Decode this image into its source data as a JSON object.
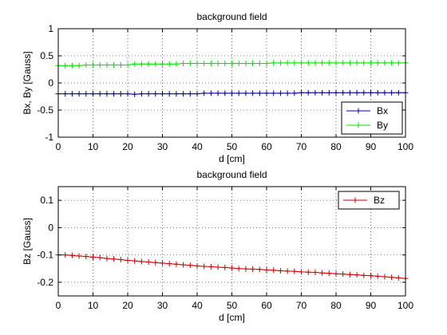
{
  "chart_data": [
    {
      "type": "line",
      "title": "background field",
      "xlabel": "d [cm]",
      "ylabel": "Bx, By [Gauss]",
      "xlim": [
        0,
        100
      ],
      "ylim": [
        -1,
        1
      ],
      "xticks": [
        0,
        10,
        20,
        30,
        40,
        50,
        60,
        70,
        80,
        90,
        100
      ],
      "yticks": [
        -1,
        -0.5,
        0,
        0.5,
        1
      ],
      "ytick_labels": [
        "-1",
        "-0.5",
        "0",
        "0.5",
        "1"
      ],
      "grid": true,
      "legend": "bottom-right",
      "marker": "plus",
      "series": [
        {
          "name": "Bx",
          "color": "#00008f",
          "x": [
            0,
            2,
            4,
            6,
            8,
            10,
            12,
            14,
            16,
            18,
            20,
            22,
            24,
            26,
            28,
            30,
            32,
            34,
            36,
            38,
            40,
            42,
            44,
            46,
            48,
            50,
            52,
            54,
            56,
            58,
            60,
            62,
            64,
            66,
            68,
            70,
            72,
            74,
            76,
            78,
            80,
            82,
            84,
            86,
            88,
            90,
            92,
            94,
            96,
            98,
            100
          ],
          "y": [
            -0.2,
            -0.2,
            -0.2,
            -0.2,
            -0.2,
            -0.2,
            -0.2,
            -0.2,
            -0.2,
            -0.2,
            -0.2,
            -0.21,
            -0.2,
            -0.2,
            -0.2,
            -0.2,
            -0.2,
            -0.2,
            -0.2,
            -0.2,
            -0.2,
            -0.19,
            -0.19,
            -0.19,
            -0.19,
            -0.19,
            -0.19,
            -0.19,
            -0.19,
            -0.19,
            -0.19,
            -0.19,
            -0.19,
            -0.19,
            -0.19,
            -0.18,
            -0.18,
            -0.18,
            -0.18,
            -0.18,
            -0.18,
            -0.18,
            -0.18,
            -0.18,
            -0.18,
            -0.18,
            -0.18,
            -0.18,
            -0.18,
            -0.18,
            -0.18
          ]
        },
        {
          "name": "By",
          "color": "#00e000",
          "x": [
            0,
            2,
            4,
            6,
            8,
            10,
            12,
            14,
            16,
            18,
            20,
            22,
            24,
            26,
            28,
            30,
            32,
            34,
            36,
            38,
            40,
            42,
            44,
            46,
            48,
            50,
            52,
            54,
            56,
            58,
            60,
            62,
            64,
            66,
            68,
            70,
            72,
            74,
            76,
            78,
            80,
            82,
            84,
            86,
            88,
            90,
            92,
            94,
            96,
            98,
            100
          ],
          "y": [
            0.32,
            0.32,
            0.32,
            0.32,
            0.33,
            0.33,
            0.33,
            0.33,
            0.33,
            0.33,
            0.33,
            0.35,
            0.35,
            0.35,
            0.35,
            0.35,
            0.35,
            0.35,
            0.36,
            0.36,
            0.36,
            0.36,
            0.36,
            0.36,
            0.36,
            0.36,
            0.36,
            0.36,
            0.36,
            0.36,
            0.36,
            0.37,
            0.37,
            0.37,
            0.37,
            0.37,
            0.37,
            0.37,
            0.37,
            0.37,
            0.37,
            0.37,
            0.37,
            0.37,
            0.37,
            0.37,
            0.37,
            0.37,
            0.37,
            0.37,
            0.37
          ]
        }
      ]
    },
    {
      "type": "line",
      "title": "background field",
      "xlabel": "d [cm]",
      "ylabel": "Bz [Gauss]",
      "xlim": [
        0,
        100
      ],
      "ylim": [
        -0.25,
        0.15
      ],
      "xticks": [
        0,
        10,
        20,
        30,
        40,
        50,
        60,
        70,
        80,
        90,
        100
      ],
      "yticks": [
        -0.2,
        -0.1,
        0,
        0.1
      ],
      "ytick_labels": [
        "-0.2",
        "-0.1",
        "0",
        "0.1"
      ],
      "grid": true,
      "legend": "top-right",
      "marker": "plus",
      "series": [
        {
          "name": "Bz",
          "color": "#cc0000",
          "x": [
            0,
            2,
            4,
            6,
            8,
            10,
            12,
            14,
            16,
            18,
            20,
            22,
            24,
            26,
            28,
            30,
            32,
            34,
            36,
            38,
            40,
            42,
            44,
            46,
            48,
            50,
            52,
            54,
            56,
            58,
            60,
            62,
            64,
            66,
            68,
            70,
            72,
            74,
            76,
            78,
            80,
            82,
            84,
            86,
            88,
            90,
            92,
            94,
            96,
            98,
            100
          ],
          "y": [
            -0.1,
            -0.1,
            -0.102,
            -0.104,
            -0.106,
            -0.108,
            -0.11,
            -0.113,
            -0.115,
            -0.117,
            -0.12,
            -0.122,
            -0.124,
            -0.126,
            -0.128,
            -0.13,
            -0.132,
            -0.134,
            -0.136,
            -0.138,
            -0.14,
            -0.142,
            -0.143,
            -0.145,
            -0.146,
            -0.148,
            -0.15,
            -0.151,
            -0.152,
            -0.153,
            -0.155,
            -0.156,
            -0.158,
            -0.159,
            -0.16,
            -0.162,
            -0.163,
            -0.164,
            -0.166,
            -0.167,
            -0.169,
            -0.17,
            -0.172,
            -0.173,
            -0.175,
            -0.176,
            -0.178,
            -0.18,
            -0.182,
            -0.184,
            -0.186
          ]
        }
      ]
    }
  ]
}
